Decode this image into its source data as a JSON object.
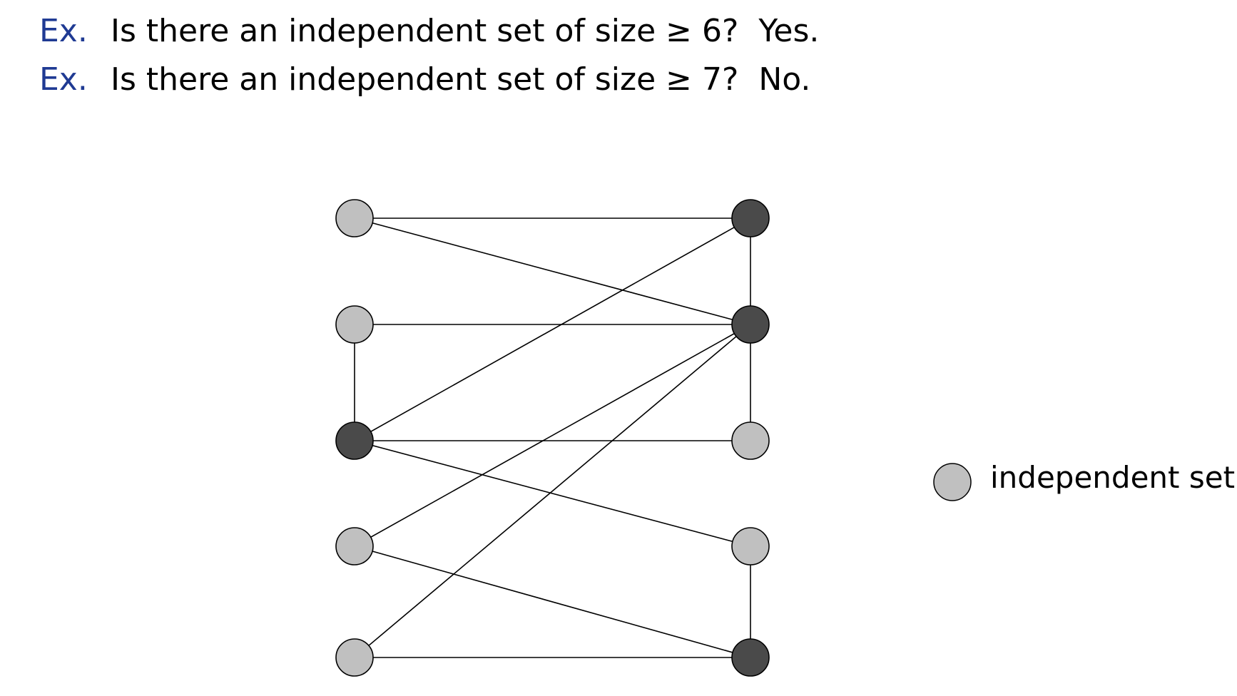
{
  "questions": [
    {
      "label": "Ex.",
      "text": "Is there an independent set of size ≥ 6?",
      "answer": "Yes."
    },
    {
      "label": "Ex.",
      "text": "Is there an independent set of size ≥ 7?",
      "answer": "No."
    }
  ],
  "legend": {
    "label": "independent set"
  },
  "colors": {
    "ex_label": "#1f3a93",
    "in_set_fill": "#c0c0c0",
    "not_in_set_fill": "#4a4a4a",
    "edge": "#000000"
  },
  "graph": {
    "nodes": [
      {
        "id": "L1",
        "in_set": true
      },
      {
        "id": "L2",
        "in_set": true
      },
      {
        "id": "L3",
        "in_set": false
      },
      {
        "id": "L4",
        "in_set": true
      },
      {
        "id": "L5",
        "in_set": true
      },
      {
        "id": "R1",
        "in_set": false
      },
      {
        "id": "R2",
        "in_set": false
      },
      {
        "id": "R3",
        "in_set": true
      },
      {
        "id": "R4",
        "in_set": true
      },
      {
        "id": "R5",
        "in_set": false
      }
    ],
    "edges": [
      [
        "L1",
        "R1"
      ],
      [
        "L1",
        "R2"
      ],
      [
        "L2",
        "R2"
      ],
      [
        "L2",
        "L3"
      ],
      [
        "L3",
        "R1"
      ],
      [
        "L3",
        "R3"
      ],
      [
        "L3",
        "R4"
      ],
      [
        "L4",
        "R2"
      ],
      [
        "L4",
        "R5"
      ],
      [
        "L5",
        "R2"
      ],
      [
        "L5",
        "R5"
      ],
      [
        "R1",
        "R2"
      ],
      [
        "R2",
        "R3"
      ],
      [
        "R4",
        "R5"
      ]
    ]
  }
}
